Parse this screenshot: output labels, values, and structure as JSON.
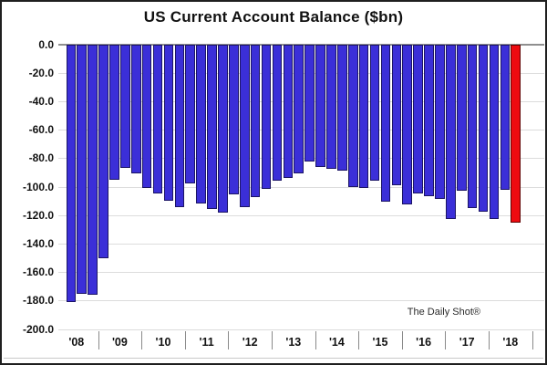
{
  "chart_data": {
    "type": "bar",
    "title": "US Current Account Balance ($bn)",
    "watermark": "The Daily Shot®",
    "ylabel": "",
    "xlabel": "",
    "ylim": [
      -200,
      0
    ],
    "grid": true,
    "y_ticks": [
      {
        "label": "0.0",
        "value": 0
      },
      {
        "label": "-20.0",
        "value": -20
      },
      {
        "label": "-40.0",
        "value": -40
      },
      {
        "label": "-60.0",
        "value": -60
      },
      {
        "label": "-80.0",
        "value": -80
      },
      {
        "label": "-100.0",
        "value": -100
      },
      {
        "label": "-120.0",
        "value": -120
      },
      {
        "label": "-140.0",
        "value": -140
      },
      {
        "label": "-160.0",
        "value": -160
      },
      {
        "label": "-180.0",
        "value": -180
      },
      {
        "label": "-200.0",
        "value": -200
      }
    ],
    "x_year_labels": [
      "'08",
      "'09",
      "'10",
      "'11",
      "'12",
      "'13",
      "'14",
      "'15",
      "'16",
      "'17",
      "'18"
    ],
    "quarters_per_year": 4,
    "first_bar_slot_offset": 1,
    "values": [
      -181,
      -175,
      -176,
      -150,
      -95,
      -87,
      -91,
      -101,
      -104.5,
      -110,
      -114.5,
      -98,
      -112,
      -115.5,
      -118,
      -105.5,
      -114.5,
      -107.5,
      -101.5,
      -96,
      -94,
      -90.5,
      -82.5,
      -86,
      -87.5,
      -88.5,
      -100,
      -101,
      -96,
      -110.5,
      -99,
      -112.5,
      -104.5,
      -106.5,
      -108.5,
      -122.5,
      -103,
      -115,
      -117.5,
      -122.5,
      -102.5,
      -125.5
    ],
    "highlight_index": 41,
    "colors": {
      "bar_fill": "#3B2FD8",
      "bar_border": "#1B1464",
      "highlight_fill": "#EE0B10",
      "highlight_border": "#5e0000",
      "gridline": "#dcdcdc",
      "zero_line": "#8f8f8f"
    }
  }
}
